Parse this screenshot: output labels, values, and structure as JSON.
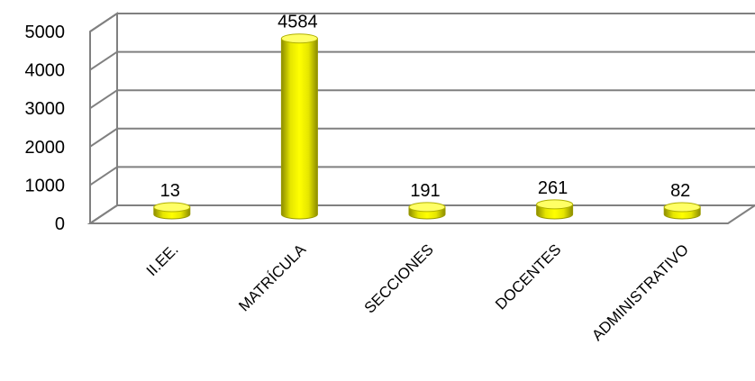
{
  "chart_data": {
    "type": "bar",
    "categories": [
      "II.EE.",
      "MATRÍCULA",
      "SECCIONES",
      "DOCENTES",
      "ADMINISTRATIVO"
    ],
    "values": [
      13,
      4584,
      191,
      261,
      82
    ],
    "data_labels": [
      "13",
      "4584",
      "191",
      "261",
      "82"
    ],
    "y_ticks": [
      "0",
      "1000",
      "2000",
      "3000",
      "4000",
      "5000"
    ],
    "ylim": [
      0,
      5000
    ],
    "grid": true,
    "three_d": true,
    "bar_color": "#ffff00",
    "bar_shade_color": "#b8b800",
    "grid_color": "#808080",
    "legend": "none"
  }
}
